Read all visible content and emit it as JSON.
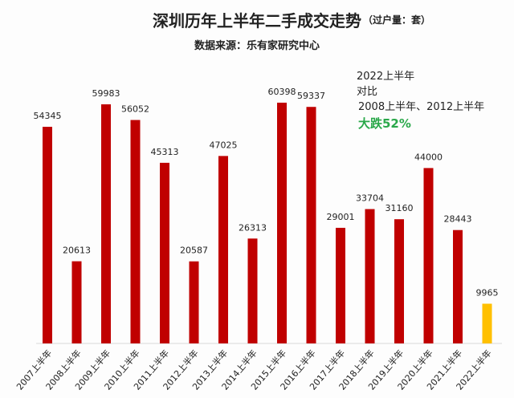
{
  "chart_data": {
    "type": "bar",
    "title": "深圳历年上半年二手成交走势",
    "unit_note": "（过户量：套）",
    "subtitle": "数据来源：乐有家研究中心",
    "annotation": [
      "2022上半年",
      "对比",
      "2008上半年、2012上半年",
      "大跌52%"
    ],
    "categories": [
      "2007上半年",
      "2008上半年",
      "2009上半年",
      "2010上半年",
      "2011上半年",
      "2012上半年",
      "2013上半年",
      "2014上半年",
      "2015上半年",
      "2016上半年",
      "2017上半年",
      "2018上半年",
      "2019上半年",
      "2020上半年",
      "2021上半年",
      "2022上半年"
    ],
    "values": [
      54345,
      20613,
      59983,
      56052,
      45313,
      20587,
      47025,
      26313,
      60398,
      59337,
      29001,
      33704,
      31160,
      44000,
      28443,
      9965
    ],
    "ylim": [
      0,
      62000
    ],
    "grid": false,
    "colors": {
      "bar": "#c00000",
      "highlight": "#ffc000"
    }
  }
}
